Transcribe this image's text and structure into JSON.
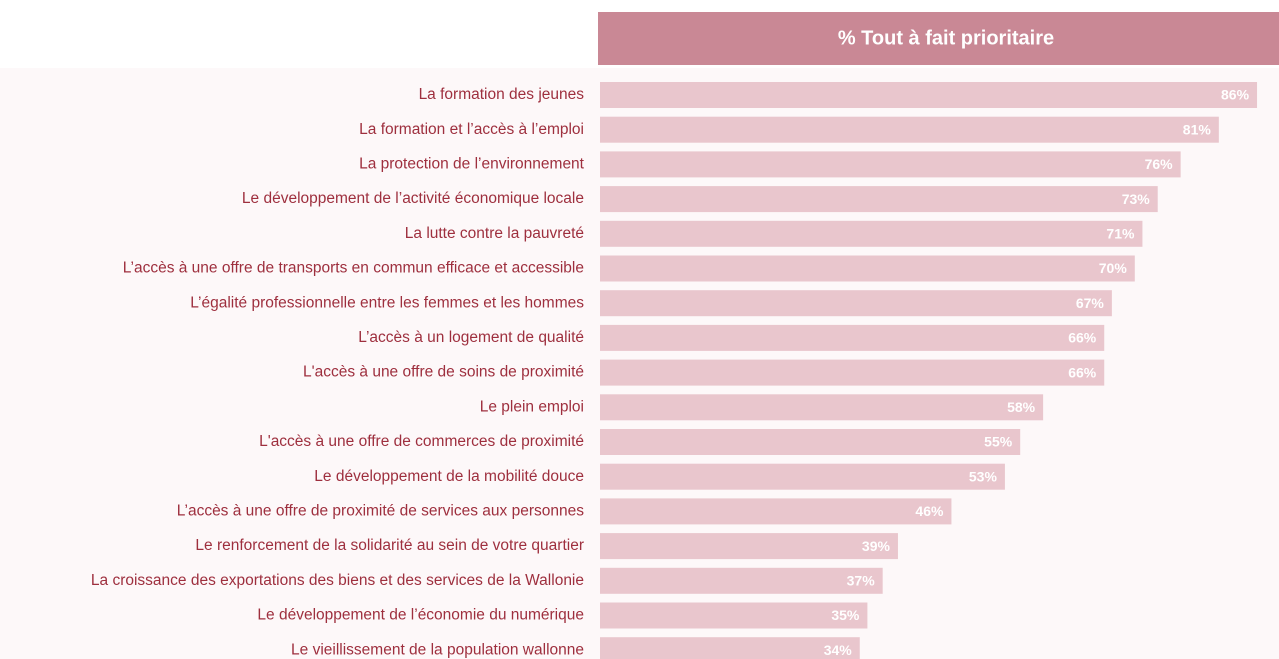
{
  "chart_data": {
    "type": "barh",
    "title": "% Tout à fait prioritaire",
    "categories": [
      "La formation des jeunes",
      "La formation et l’accès à l’emploi",
      "La protection de l’environnement",
      "Le développement de l’activité économique locale",
      "La lutte contre la pauvreté",
      "L’accès à une offre de transports en commun efficace et accessible",
      "L’égalité professionnelle entre les femmes et les hommes",
      "L’accès à un logement de qualité",
      "L'accès à une offre de soins de proximité",
      "Le plein emploi",
      "L'accès à une offre de commerces de proximité",
      "Le développement de la mobilité douce",
      "L’accès à une offre de proximité de services aux personnes",
      "Le renforcement de la solidarité au sein de votre quartier",
      "La croissance des exportations des biens et des services de la Wallonie",
      "Le développement de l’économie du numérique",
      "Le vieillissement de la population wallonne"
    ],
    "values": [
      86,
      81,
      76,
      73,
      71,
      70,
      67,
      66,
      66,
      58,
      55,
      53,
      46,
      39,
      37,
      35,
      34
    ],
    "value_labels": [
      "86%",
      "81%",
      "76%",
      "73%",
      "71%",
      "70%",
      "67%",
      "66%",
      "66%",
      "58%",
      "55%",
      "53%",
      "46%",
      "39%",
      "37%",
      "35%",
      "34%"
    ],
    "color": "#e9c6cd"
  }
}
